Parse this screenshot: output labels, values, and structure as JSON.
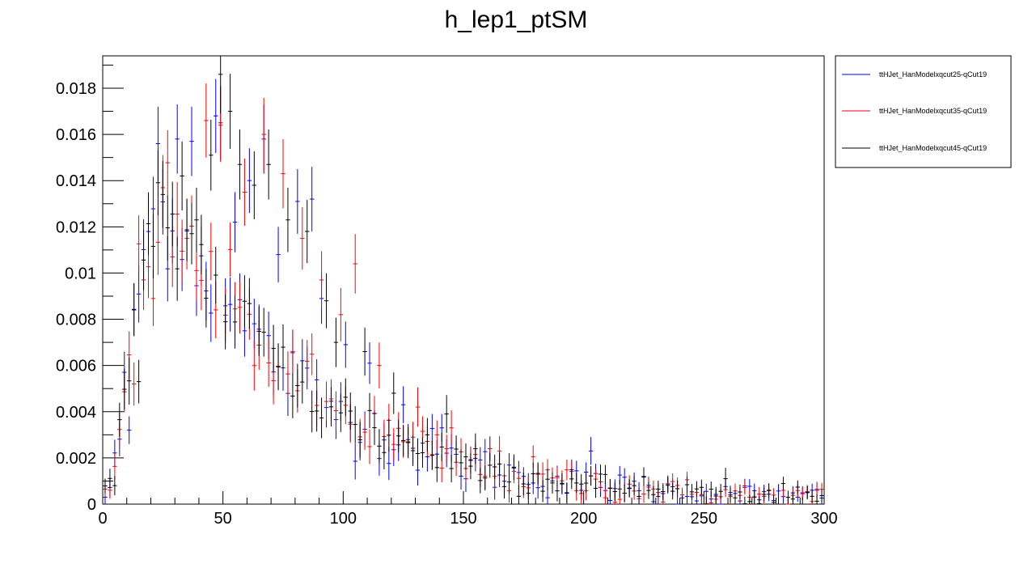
{
  "chart_data": {
    "type": "scatter",
    "title": "h_lep1_ptSM",
    "xlabel": "",
    "ylabel": "",
    "xlim": [
      0,
      300
    ],
    "ylim": [
      0,
      0.0194
    ],
    "x_ticks": [
      0,
      50,
      100,
      150,
      200,
      250,
      300
    ],
    "y_ticks": [
      0,
      0.002,
      0.004,
      0.006,
      0.008,
      0.01,
      0.012,
      0.014,
      0.016,
      0.018
    ],
    "x_tick_labels": [
      "0",
      "50",
      "100",
      "150",
      "200",
      "250",
      "300"
    ],
    "y_tick_labels": [
      "0",
      "0.002",
      "0.004",
      "0.006",
      "0.008",
      "0.01",
      "0.012",
      "0.014",
      "0.016",
      "0.018"
    ],
    "bin_width": 2,
    "legend_position": "top-right",
    "grid": false,
    "series": [
      {
        "name": "ttHJet_HanModelxqcut25-qCut19",
        "color": "#0000ff",
        "x": [
          1,
          11,
          23,
          31,
          37,
          47,
          49,
          55,
          61,
          67,
          73,
          81,
          87,
          91,
          101,
          111,
          125,
          141,
          161,
          175,
          203,
          225,
          261,
          289
        ],
        "y": [
          0.0003,
          0.0032,
          0.0156,
          0.0158,
          0.0157,
          0.0168,
          0.0165,
          0.0122,
          0.014,
          0.0158,
          0.0108,
          0.0131,
          0.0132,
          0.0089,
          0.0069,
          0.0061,
          0.0043,
          0.0033,
          0.0024,
          0.0012,
          0.0023,
          0.0012,
          0.0005,
          0.0003
        ],
        "err": [
          0.0003,
          0.0006,
          0.0016,
          0.0015,
          0.0015,
          0.0016,
          0.0016,
          0.0013,
          0.0014,
          0.0015,
          0.0012,
          0.0014,
          0.0014,
          0.0011,
          0.001,
          0.0009,
          0.0008,
          0.0006,
          0.0005,
          0.0004,
          0.0006,
          0.0004,
          0.0003,
          0.0002
        ]
      },
      {
        "name": "ttHJet_HanModelxqcut35-qCut19",
        "color": "#ff0000",
        "x": [
          3,
          13,
          21,
          29,
          35,
          43,
          49,
          59,
          67,
          75,
          83,
          91,
          99,
          105,
          115,
          131,
          145,
          165,
          183,
          211,
          241,
          271,
          297
        ],
        "y": [
          0.0006,
          0.0052,
          0.0089,
          0.0107,
          0.0115,
          0.0166,
          0.0164,
          0.0135,
          0.016,
          0.0143,
          0.0115,
          0.0097,
          0.0082,
          0.0104,
          0.006,
          0.0042,
          0.0033,
          0.0023,
          0.0013,
          0.0007,
          0.0004,
          0.0003,
          0.0006
        ]
      },
      {
        "name": "ttHJet_HanModelxqcut45-qCut19",
        "color": "#000000",
        "x": [
          5,
          15,
          25,
          33,
          39,
          45,
          49,
          53,
          57,
          63,
          69,
          77,
          85,
          93,
          97,
          109,
          121,
          135,
          143,
          155,
          171,
          191,
          221,
          259,
          285
        ],
        "y": [
          0.0008,
          0.0053,
          0.0134,
          0.0142,
          0.0123,
          0.0151,
          0.0186,
          0.017,
          0.0147,
          0.0138,
          0.0147,
          0.0123,
          0.0118,
          0.0088,
          0.007,
          0.0066,
          0.0048,
          0.003,
          0.0039,
          0.0024,
          0.0016,
          0.0009,
          0.0008,
          0.0011,
          0.0003
        ]
      }
    ]
  }
}
